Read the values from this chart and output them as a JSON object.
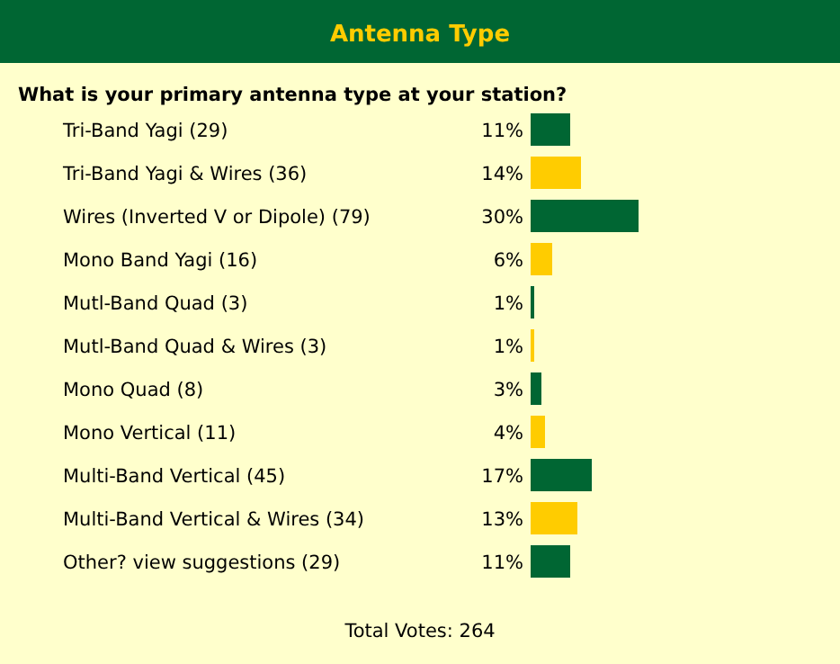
{
  "chart_data": {
    "type": "bar",
    "orientation": "horizontal",
    "title": "Antenna Type",
    "subtitle": "What is your primary antenna type at your station?",
    "categories": [
      "Tri-Band Yagi (29)",
      "Tri-Band Yagi & Wires (36)",
      "Wires (Inverted V or Dipole) (79)",
      "Mono Band Yagi (16)",
      "Mutl-Band Quad (3)",
      "Mutl-Band Quad & Wires (3)",
      "Mono Quad (8)",
      "Mono Vertical (11)",
      "Multi-Band Vertical (45)",
      "Multi-Band Vertical & Wires (34)",
      "Other? view suggestions (29)"
    ],
    "values": [
      11,
      14,
      30,
      6,
      1,
      1,
      3,
      4,
      17,
      13,
      11
    ],
    "colors": [
      "#006633",
      "#ffcc00",
      "#006633",
      "#ffcc00",
      "#006633",
      "#ffcc00",
      "#006633",
      "#ffcc00",
      "#006633",
      "#ffcc00",
      "#006633"
    ],
    "value_labels": [
      "11%",
      "14%",
      "30%",
      "6%",
      "1%",
      "1%",
      "3%",
      "4%",
      "17%",
      "13%",
      "11%"
    ],
    "annotations": [
      "Total Votes: 264"
    ]
  }
}
